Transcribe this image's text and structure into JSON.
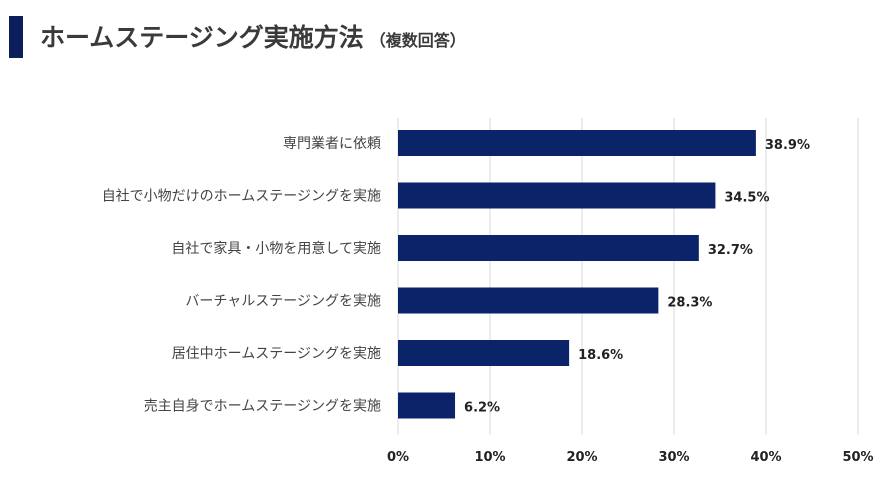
{
  "header": {
    "title": "ホームステージング実施方法",
    "subtitle": "（複数回答）"
  },
  "colors": {
    "bar": "#0b2369",
    "accent": "#0b1f5c",
    "grid": "#d9d9d9"
  },
  "chart_data": {
    "type": "bar",
    "orientation": "horizontal",
    "title": "ホームステージング実施方法（複数回答）",
    "categories": [
      "専門業者に依頼",
      "自社で小物だけのホームステージングを実施",
      "自社で家具・小物を用意して実施",
      "バーチャルステージングを実施",
      "居住中ホームステージングを実施",
      "売主自身でホームステージングを実施"
    ],
    "values": [
      38.9,
      34.5,
      32.7,
      28.3,
      18.6,
      6.2
    ],
    "value_labels": [
      "38.9%",
      "34.5%",
      "32.7%",
      "28.3%",
      "18.6%",
      "6.2%"
    ],
    "xlim": [
      0,
      50
    ],
    "x_ticks": [
      0,
      10,
      20,
      30,
      40,
      50
    ],
    "x_tick_labels": [
      "0%",
      "10%",
      "20%",
      "30%",
      "40%",
      "50%"
    ],
    "grid": true,
    "legend": "none",
    "xlabel": "",
    "ylabel": ""
  }
}
